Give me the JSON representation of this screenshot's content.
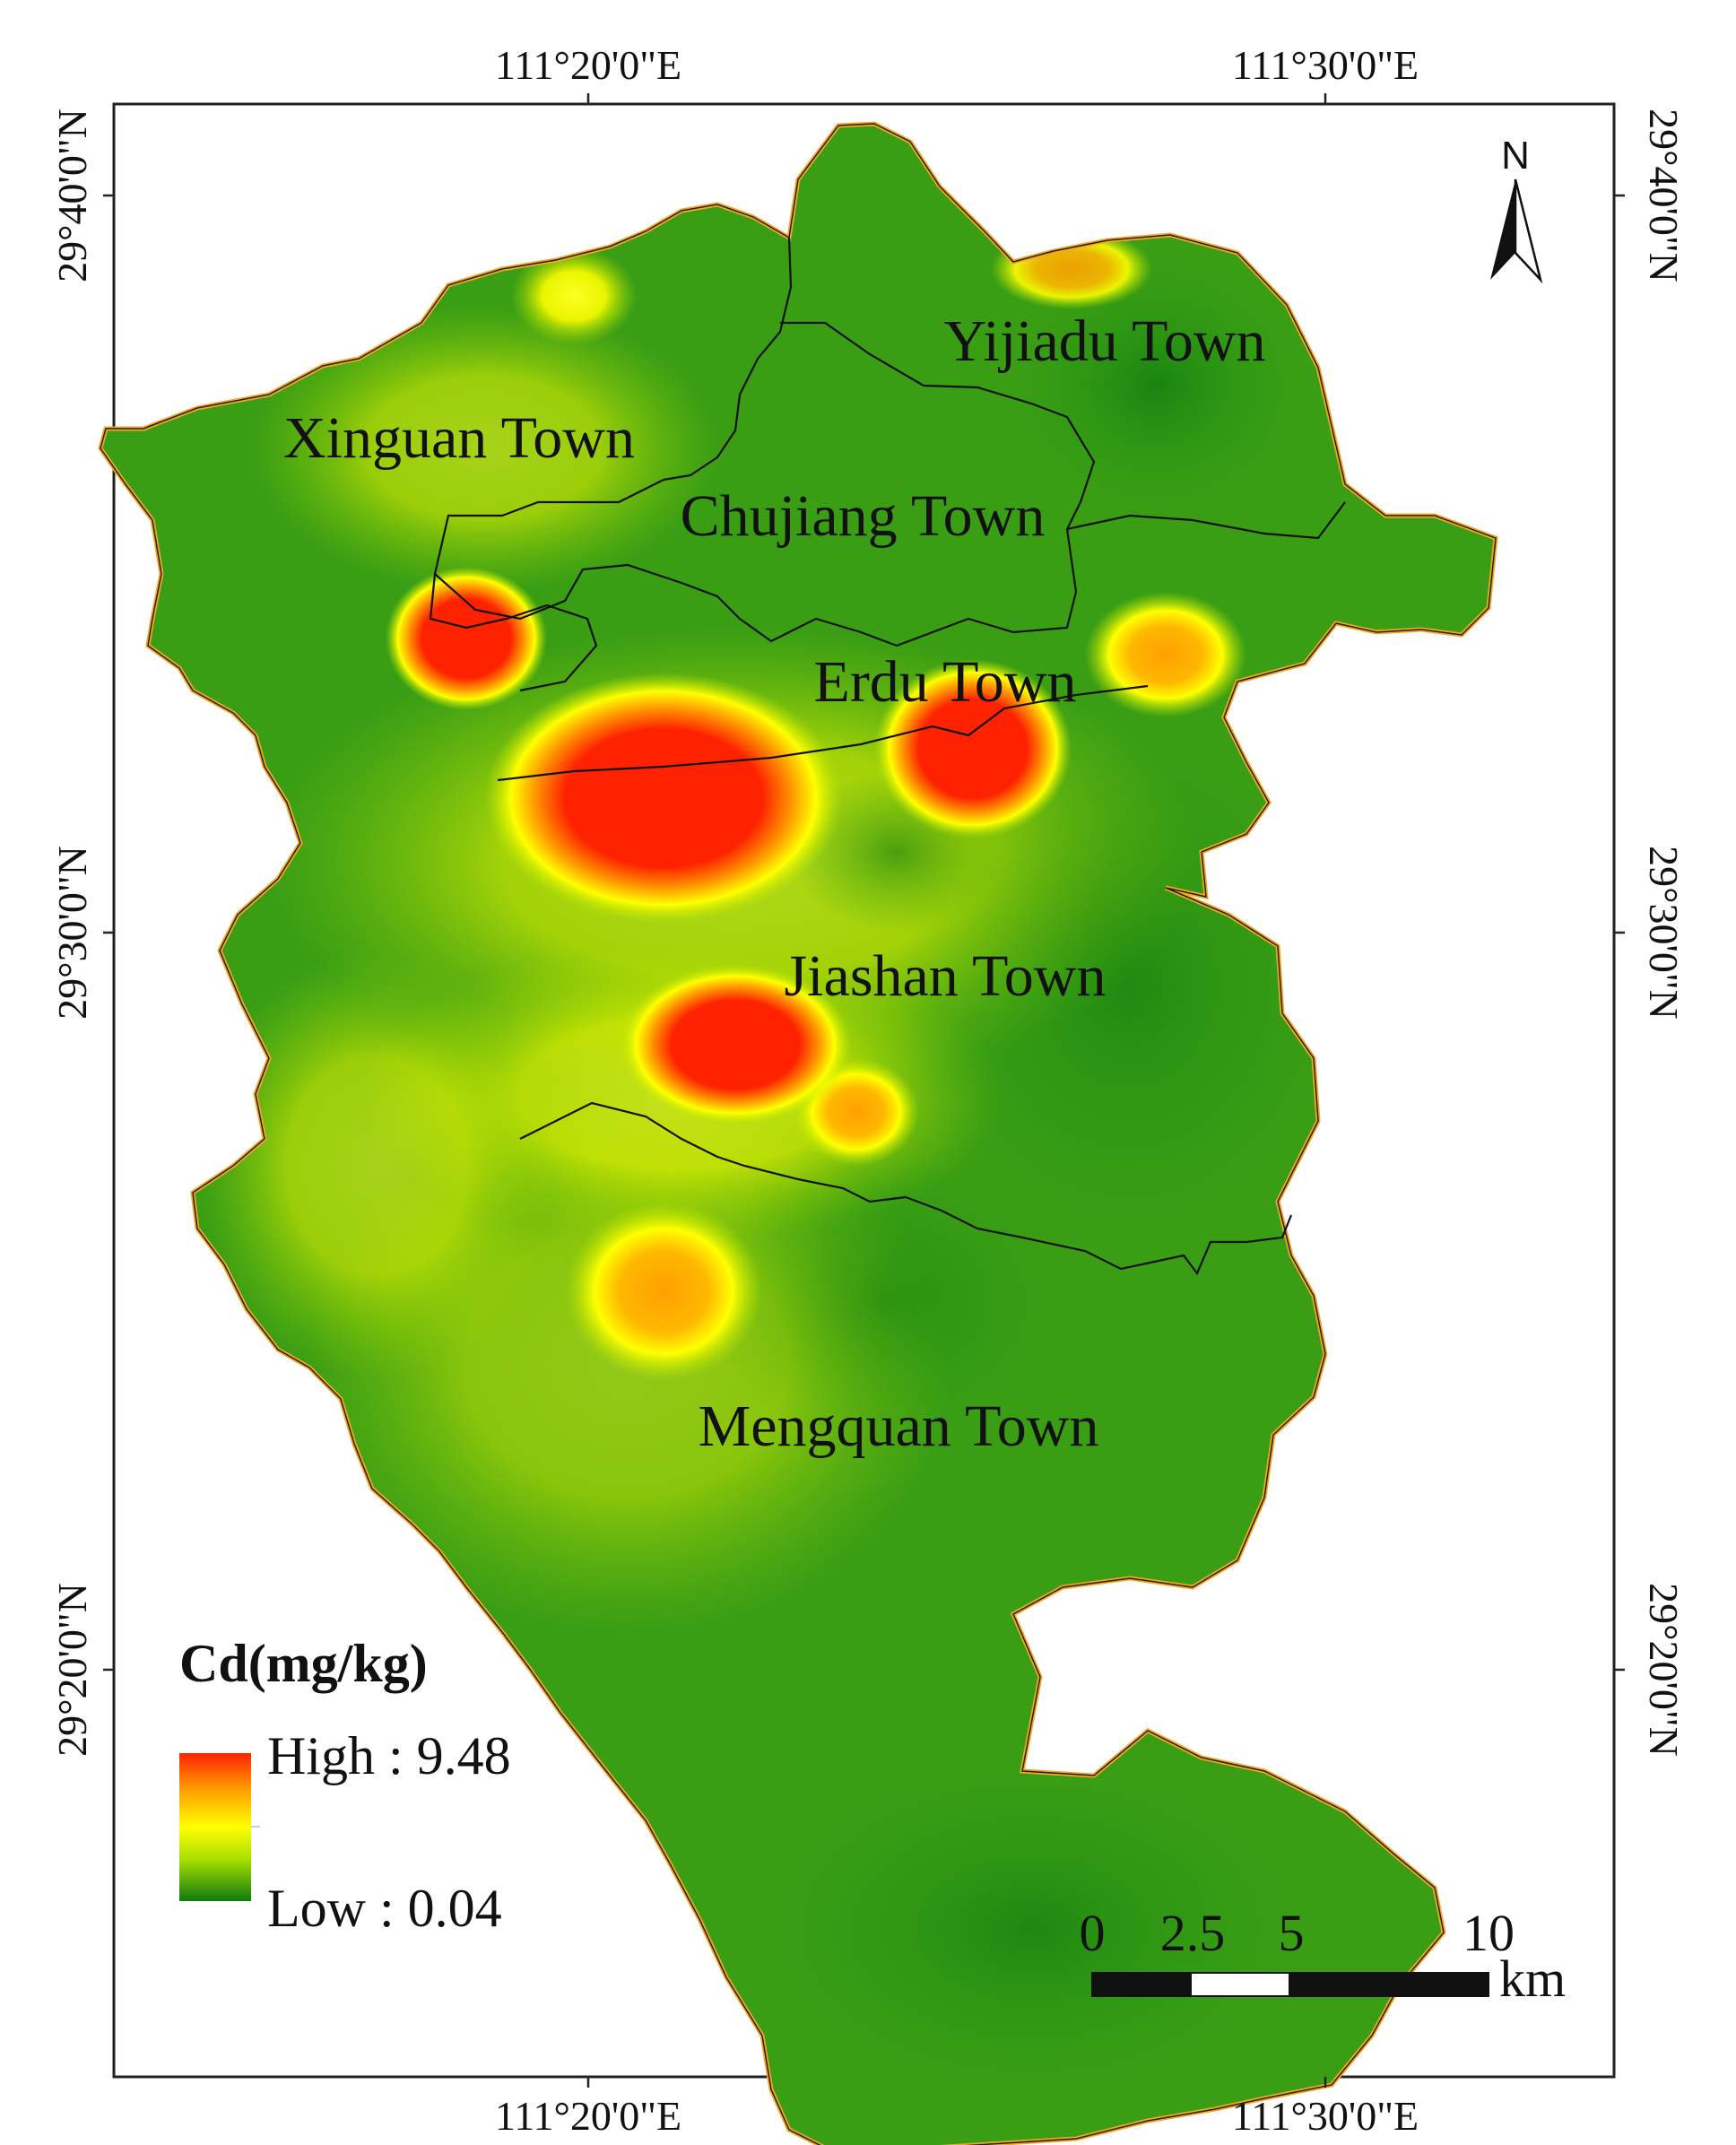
{
  "graticule": {
    "top_lon_labels": [
      "111°20'0\"E",
      "111°30'0\"E"
    ],
    "bottom_lon_labels": [
      "111°20'0\"E",
      "111°30'0\"E"
    ],
    "left_lat_labels": [
      "29°40'0\"N",
      "29°30'0\"N",
      "29°20'0\"N"
    ],
    "right_lat_labels": [
      "29°40'0\"N",
      "29°30'0\"N",
      "29°20'0\"N"
    ]
  },
  "towns": [
    {
      "name": "Yijiadu Town"
    },
    {
      "name": "Xinguan Town"
    },
    {
      "name": "Chujiang Town"
    },
    {
      "name": "Erdu Town"
    },
    {
      "name": "Jiashan Town"
    },
    {
      "name": "Mengquan Town"
    }
  ],
  "legend": {
    "title": "Cd(mg/kg)",
    "high_label": "High : 9.48",
    "low_label": "Low : 0.04",
    "high_value": 9.48,
    "low_value": 0.04,
    "colors": [
      "#ff2200",
      "#ffa000",
      "#ffff00",
      "#a8e000",
      "#1a8a10"
    ]
  },
  "north_arrow": {
    "label": "N"
  },
  "scale_bar": {
    "ticks": [
      "0",
      "2.5",
      "5",
      "10"
    ],
    "unit": "km"
  },
  "colors": {
    "boundary_outline": "#f5a623",
    "low": "#1a8a10",
    "high": "#ff2200"
  }
}
